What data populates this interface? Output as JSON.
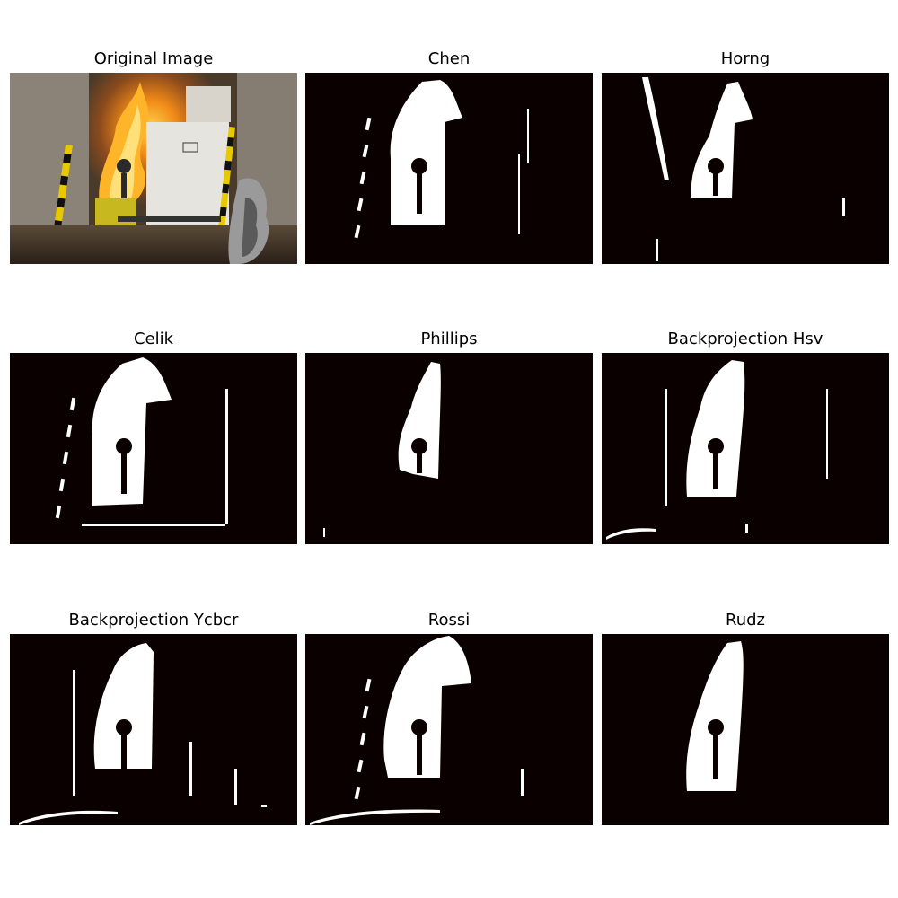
{
  "panels": [
    {
      "title": "Original Image",
      "kind": "photo"
    },
    {
      "title": "Chen",
      "kind": "mask"
    },
    {
      "title": "Horng",
      "kind": "mask"
    },
    {
      "title": "Celik",
      "kind": "mask"
    },
    {
      "title": "Phillips",
      "kind": "mask"
    },
    {
      "title": "Backprojection Hsv",
      "kind": "mask"
    },
    {
      "title": "Backprojection Ycbcr",
      "kind": "mask"
    },
    {
      "title": "Rossi",
      "kind": "mask"
    },
    {
      "title": "Rudz",
      "kind": "mask"
    }
  ],
  "colors": {
    "mask_background": "#0a0000",
    "mask_foreground": "#ffffff",
    "page_background": "#ffffff"
  }
}
